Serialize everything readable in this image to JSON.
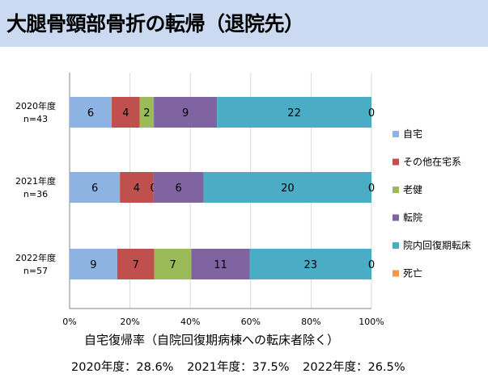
{
  "title": "大腿骨頸部骨折の転帰（退院先）",
  "chart_data": {
    "type": "bar",
    "orientation": "horizontal",
    "stacked": "percent",
    "categories": [
      {
        "year": "2020年度",
        "n": "n=43"
      },
      {
        "year": "2021年度",
        "n": "n=36"
      },
      {
        "year": "2022年度",
        "n": "n=57"
      }
    ],
    "series": [
      {
        "name": "自宅",
        "color": "#8db3e2",
        "values": [
          6,
          6,
          9
        ]
      },
      {
        "name": "その他在宅系",
        "color": "#c0504d",
        "values": [
          4,
          4,
          7
        ]
      },
      {
        "name": "老健",
        "color": "#9bbb59",
        "values": [
          2,
          0,
          7
        ]
      },
      {
        "name": "転院",
        "color": "#8064a2",
        "values": [
          9,
          6,
          11
        ]
      },
      {
        "name": "院内回復期転床",
        "color": "#4bacc6",
        "values": [
          22,
          20,
          23
        ]
      },
      {
        "name": "死亡",
        "color": "#f79646",
        "values": [
          0,
          0,
          0
        ]
      }
    ],
    "xaxis": {
      "ticks": [
        "0%",
        "20%",
        "40%",
        "60%",
        "80%",
        "100%"
      ],
      "range": [
        0,
        100
      ]
    },
    "legend": "right"
  },
  "footnote": "自宅復帰率（自院回復期病棟への転床者除く）",
  "rates": [
    "2020年度：28.6%",
    "2021年度：37.5%",
    "2022年度：26.5%"
  ]
}
